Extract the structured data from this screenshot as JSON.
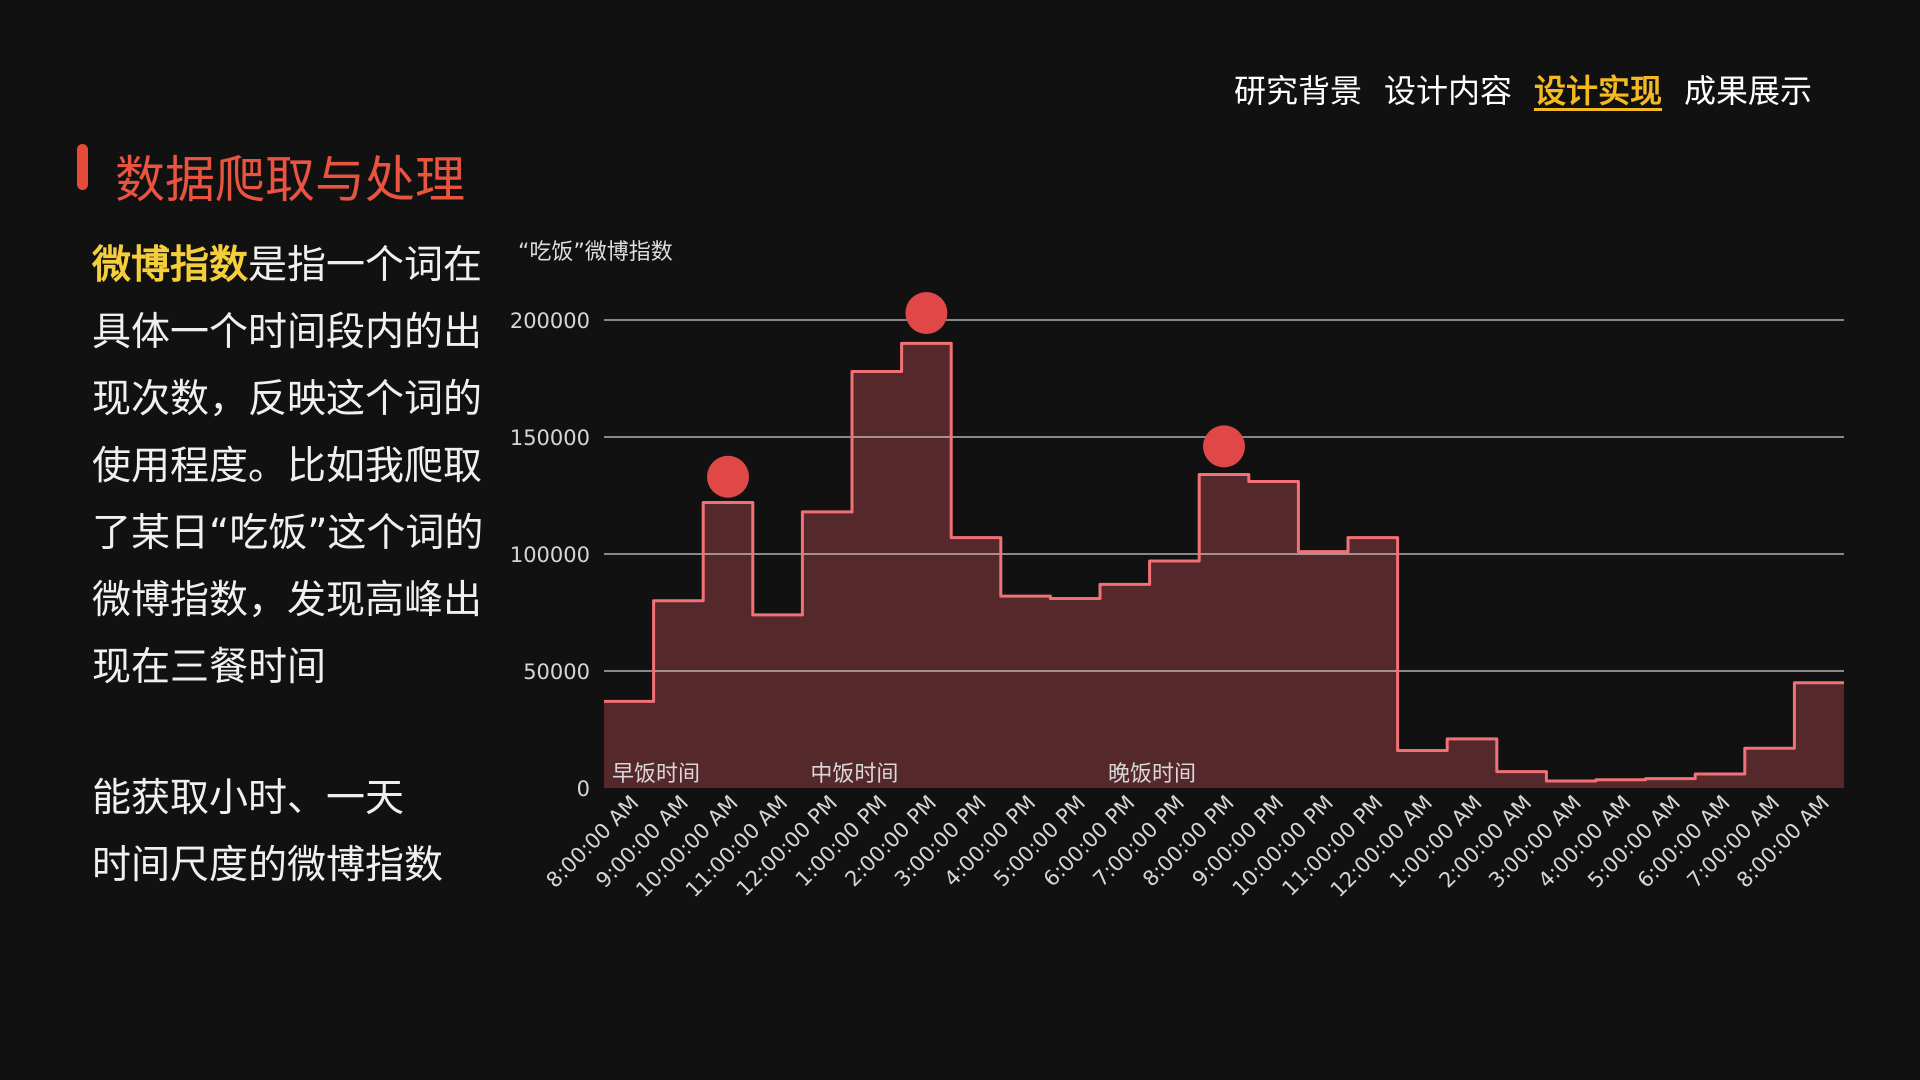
{
  "nav": {
    "items": [
      {
        "label": "研究背景",
        "active": false
      },
      {
        "label": "设计内容",
        "active": false
      },
      {
        "label": "设计实现",
        "active": true
      },
      {
        "label": "成果展示",
        "active": false
      }
    ]
  },
  "page_title": "数据爬取与处理",
  "description": {
    "highlight": "微博指数",
    "text": "是指一个词在具体一个时间段内的出现次数，反映这个词的使用程度。比如我爬取了某日“吃饭”这个词的微博指数，发现高峰出现在三餐时间",
    "note_line1": "能获取小时、一天",
    "note_line2": "时间尺度的微博指数"
  },
  "colors": {
    "background": "#111111",
    "accent_red": "#e84a3a",
    "highlight_yellow": "#f5cf3b",
    "nav_active": "#f5b921",
    "area_fill": "#55282c",
    "line_color": "#f07276",
    "marker": "#e04848"
  },
  "chart_data": {
    "type": "area",
    "step": true,
    "title": "“吃饭”微博指数",
    "ylim": [
      0,
      200000
    ],
    "yticks": [
      0,
      50000,
      100000,
      150000,
      200000
    ],
    "grid": true,
    "x": [
      "8:00:00 AM",
      "9:00:00 AM",
      "10:00:00 AM",
      "11:00:00 AM",
      "12:00:00 PM",
      "1:00:00 PM",
      "2:00:00 PM",
      "3:00:00 PM",
      "4:00:00 PM",
      "5:00:00 PM",
      "6:00:00 PM",
      "7:00:00 PM",
      "8:00:00 PM",
      "9:00:00 PM",
      "10:00:00 PM",
      "11:00:00 PM",
      "12:00:00 AM",
      "1:00:00 AM",
      "2:00:00 AM",
      "3:00:00 AM",
      "4:00:00 AM",
      "5:00:00 AM",
      "6:00:00 AM",
      "7:00:00 AM",
      "8:00:00 AM"
    ],
    "series": [
      {
        "values": [
          37000,
          80000,
          122000,
          74000,
          118000,
          178000,
          190000,
          107000,
          82000,
          81000,
          87000,
          97000,
          134000,
          131000,
          101000,
          107000,
          16000,
          21000,
          7000,
          3000,
          3500,
          4000,
          6000,
          17000,
          45000
        ]
      }
    ],
    "peaks": [
      {
        "x_index": 2,
        "value": 133000
      },
      {
        "x_index": 6,
        "value": 203000
      },
      {
        "x_index": 12,
        "value": 146000
      }
    ],
    "annotations": [
      {
        "text": "早饭时间",
        "x_index": 0
      },
      {
        "text": "中饭时间",
        "x_index": 4
      },
      {
        "text": "晚饭时间",
        "x_index": 10
      }
    ]
  }
}
